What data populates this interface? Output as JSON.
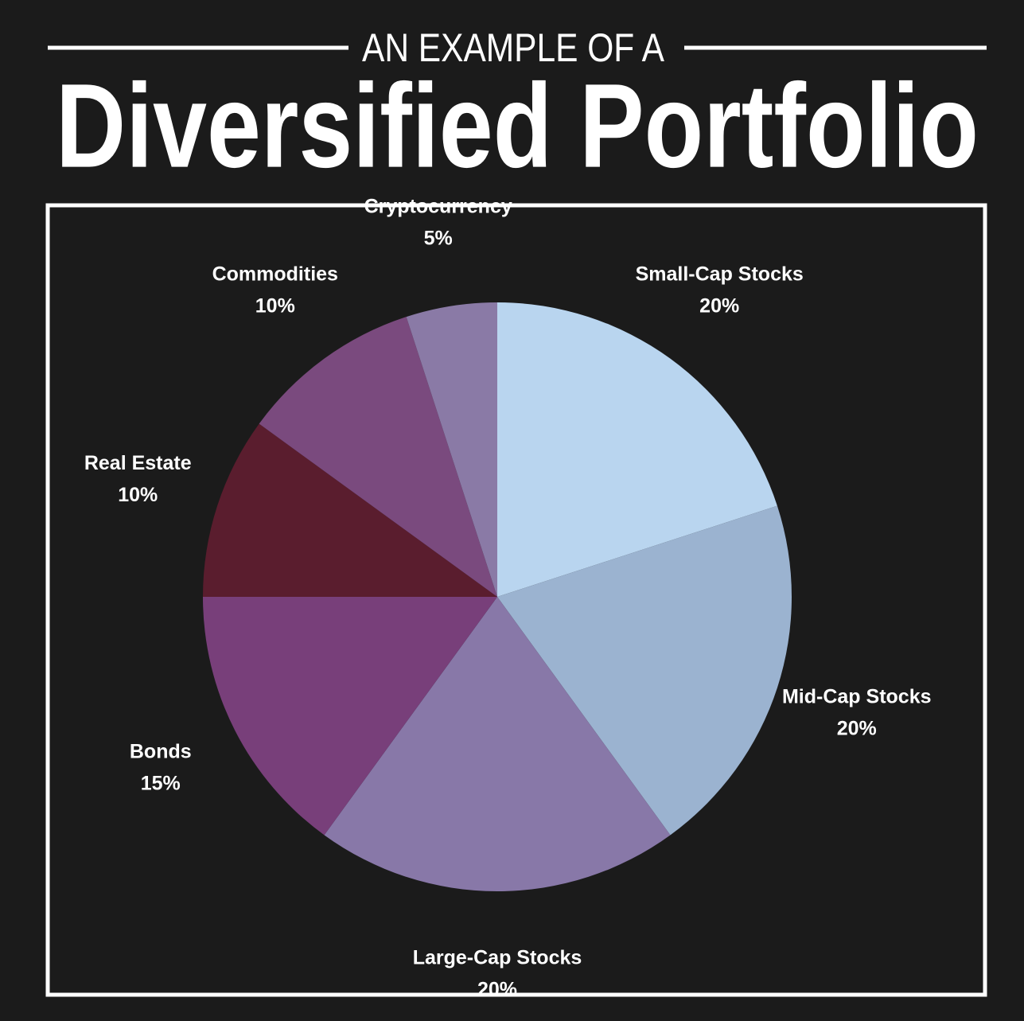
{
  "chart_data": {
    "type": "pie",
    "subtitle": "AN EXAMPLE OF A",
    "title": "Diversified Portfolio",
    "categories": [
      "Small-Cap Stocks",
      "Mid-Cap Stocks",
      "Large-Cap Stocks",
      "Bonds",
      "Real Estate",
      "Commodities",
      "Cryptocurrency"
    ],
    "values": [
      20,
      20,
      20,
      15,
      10,
      10,
      5
    ],
    "value_labels": [
      "20%",
      "20%",
      "20%",
      "15%",
      "10%",
      "10%",
      "5%"
    ],
    "colors": [
      "#b9d5ef",
      "#9bb3d0",
      "#8878a8",
      "#783f7a",
      "#5a1d2e",
      "#7a4a7e",
      "#8a7aa6"
    ]
  }
}
